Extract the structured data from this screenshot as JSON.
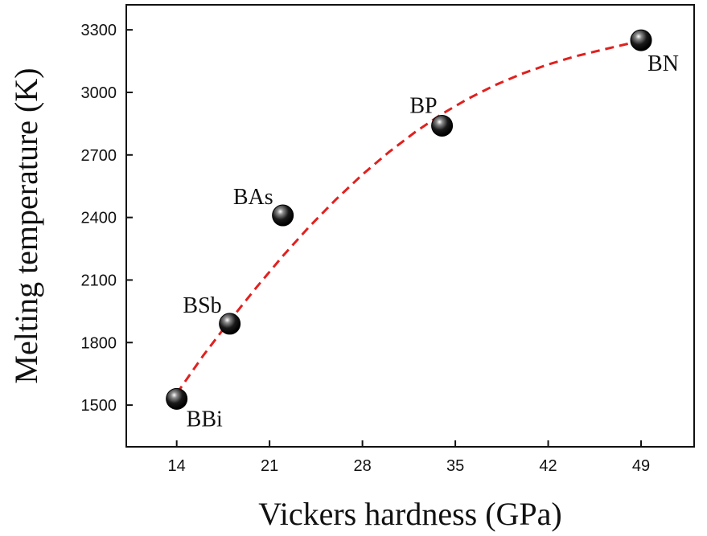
{
  "chart_data": {
    "type": "scatter",
    "xlabel": "Vickers hardness (GPa)",
    "ylabel": "Melting temperature (K)",
    "xlim": [
      10.2,
      53
    ],
    "ylim": [
      1300,
      3420
    ],
    "x_ticks": [
      14,
      21,
      28,
      35,
      42,
      49
    ],
    "y_ticks": [
      1500,
      1800,
      2100,
      2400,
      2700,
      3000,
      3300
    ],
    "x_tick_labels": [
      "14",
      "21",
      "28",
      "35",
      "42",
      "49"
    ],
    "y_tick_labels": [
      "1500",
      "1800",
      "2100",
      "2400",
      "2700",
      "3000",
      "3300"
    ],
    "grid": false,
    "legend": "none",
    "points": [
      {
        "label": "BBi",
        "x": 14,
        "y": 1530
      },
      {
        "label": "BSb",
        "x": 18,
        "y": 1890
      },
      {
        "label": "BAs",
        "x": 22,
        "y": 2410
      },
      {
        "label": "BP",
        "x": 34,
        "y": 2840
      },
      {
        "label": "BN",
        "x": 49,
        "y": 3250
      }
    ],
    "fit_curve": {
      "style": "dashed",
      "color": "#e0211f",
      "x": [
        14,
        16,
        18,
        20,
        22,
        24,
        26,
        28,
        30,
        32,
        34,
        36,
        38,
        40,
        42,
        44,
        46,
        48,
        49
      ],
      "y": [
        1555,
        1738,
        1905,
        2064,
        2215,
        2356,
        2486,
        2606,
        2714,
        2811,
        2897,
        2971,
        3035,
        3089,
        3134,
        3172,
        3203,
        3233,
        3250
      ]
    },
    "colors": {
      "marker": "#111111",
      "axis": "#111111",
      "curve": "#e0211f"
    }
  }
}
